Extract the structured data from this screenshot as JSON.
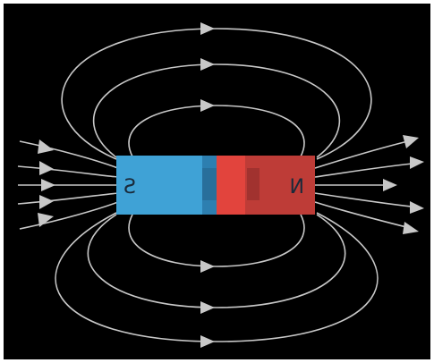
{
  "magnet": {
    "left_pole_label": "S",
    "right_pole_label": "N",
    "left_pole_color": "#3fa2d6",
    "left_pole_inner_color": "#2d7fb0",
    "right_pole_color": "#e2443d",
    "right_pole_inner_color": "#b23a36"
  },
  "field": {
    "line_color": "#c8c8c8",
    "background_color": "#000000",
    "frame_color": "#ffffff"
  }
}
